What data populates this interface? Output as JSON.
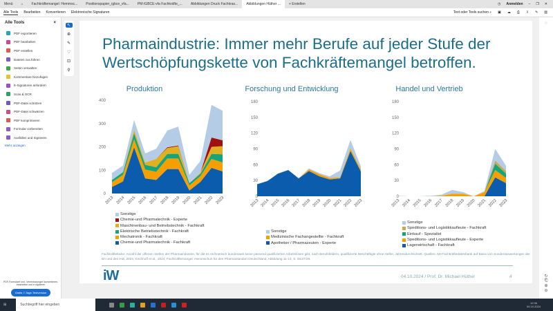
{
  "tabs": {
    "menu": "Menü",
    "items": [
      "Fachkräftemangel: Hemmsc...",
      "Positionspapier_igbce_vfa...",
      "PM-IGBCE-vfa Fachkräfte_...",
      "Abbildungen Druck Fachkras...",
      "Abbildungen Hüther ..."
    ],
    "new": "+ Erstellen",
    "signin": "Anmelden"
  },
  "menubar": {
    "items": [
      "Alle Tools",
      "Bearbeiten",
      "Konvertieren",
      "Elektronische Signaturen"
    ],
    "search": "Text oder Tools suchen"
  },
  "sidebar": {
    "title": "Alle Tools",
    "items": [
      {
        "label": "PDF exportieren",
        "color": "#2aa5b8"
      },
      {
        "label": "PDF bearbeiten",
        "color": "#d04a8a"
      },
      {
        "label": "PDF erstellen",
        "color": "#e05a4a"
      },
      {
        "label": "Dateien zus.führen",
        "color": "#7a5ad0"
      },
      {
        "label": "Seiten verwalten",
        "color": "#3aa84a"
      },
      {
        "label": "Kommentare hinzufügen",
        "color": "#e8c030"
      },
      {
        "label": "E-Signaturen anfordern",
        "color": "#a050c0"
      },
      {
        "label": "Scan & OCR",
        "color": "#30a060"
      },
      {
        "label": "PDF-Datei schützen",
        "color": "#6a5ac8"
      },
      {
        "label": "PDF-Datei schwärzen",
        "color": "#d04a8a"
      },
      {
        "label": "PDF komprimieren",
        "color": "#e05a4a"
      },
      {
        "label": "Formular vorbereiten",
        "color": "#8a5ad0"
      },
      {
        "label": "Ausfüllen und Signieren",
        "color": "#8a5ad0"
      }
    ],
    "more": "Mehr anzeigen",
    "promo": "PDF-Formulare und -Vereinbarungen konvertieren, bearbeiten und e-signieren",
    "trial": "Gratis 7-Tage-Testversion"
  },
  "slide": {
    "title": "Pharmaindustrie: Immer mehr Berufe auf jeder Stufe der Wertschöpfungskette von Fachkräftemangel betroffen.",
    "note": "Fachkräftelücke: Anzahl der offenen Stellen der Pharmaindustrie, für die es rechnerisch bundesweit keine passend qualifizierten Arbeitslosen gibt, nach Berufsfeldern, qualifizierte Beschäftigte ohne Helfer, Jahresdurchschnitt. Quellen: IW-Fachkräftedatenbank auf Basis von Sonderauswertungen der BA und des IAB, 2024; Kirchhoff et al., 2024; Fachkräftemangel: Hemmschuh für den Pharmastandort Deutschland, Abbildung 11-13, S. 25/27/28.",
    "logo": "iW",
    "footer": "04.10.2024 / Prof. Dr. Michael Hüther",
    "page": "4"
  },
  "taskbar": {
    "search": "Suchbegriff hier eingeben",
    "time": "12:36",
    "date": "09.10.2024"
  },
  "chart_data": [
    {
      "type": "area",
      "title": "Produktion",
      "x": [
        "2013",
        "2014",
        "2015",
        "2016",
        "2017",
        "2018",
        "2019",
        "2020",
        "2021",
        "2022",
        "2023"
      ],
      "ylim": [
        0,
        400
      ],
      "yticks": [
        0,
        100,
        200,
        300,
        400
      ],
      "series": [
        {
          "name": "Chemie-und Pharmatechnik - Fachkraft",
          "color": "#0b5cad",
          "values": [
            28,
            52,
            198,
            65,
            58,
            105,
            105,
            13,
            50,
            110,
            95
          ]
        },
        {
          "name": "Mechatronik - Fachkraft",
          "color": "#f5a000",
          "values": [
            20,
            28,
            35,
            38,
            35,
            45,
            45,
            22,
            25,
            38,
            38
          ]
        },
        {
          "name": "Elektrische Betriebstechnik - Fachkraft",
          "color": "#16a57a",
          "values": [
            10,
            12,
            25,
            20,
            20,
            20,
            20,
            10,
            10,
            22,
            35
          ]
        },
        {
          "name": "Maschinenbau- und Betriebstechnik - Fachkraft",
          "color": "#e0b020",
          "values": [
            0,
            0,
            15,
            10,
            35,
            25,
            33,
            0,
            5,
            30,
            35
          ]
        },
        {
          "name": "Chemie-und Pharmatechnik - Experte",
          "color": "#a01010",
          "values": [
            0,
            0,
            0,
            0,
            0,
            3,
            3,
            0,
            0,
            40,
            25
          ]
        },
        {
          "name": "Sonstige",
          "color": "#b4cce6",
          "values": [
            30,
            28,
            42,
            39,
            44,
            72,
            81,
            35,
            50,
            140,
            127
          ]
        }
      ]
    },
    {
      "type": "area",
      "title": "Forschung und Entwicklung",
      "x": [
        "2013",
        "2014",
        "2015",
        "2016",
        "2017",
        "2018",
        "2019",
        "2020",
        "2021",
        "2022",
        "2023"
      ],
      "ylim": [
        0,
        180
      ],
      "yticks": [
        0,
        30,
        60,
        90,
        120,
        150,
        180
      ],
      "series": [
        {
          "name": "Apotheker / Pharmazeuten - Experte",
          "color": "#0b5cad",
          "values": [
            23,
            29,
            43,
            50,
            34,
            48,
            38,
            32,
            34,
            86,
            47
          ]
        },
        {
          "name": "Medizinische Fachangestellte - Fachkraft",
          "color": "#f5a000",
          "values": [
            0,
            0,
            0,
            0,
            0,
            3,
            4,
            3,
            2,
            5,
            4
          ]
        },
        {
          "name": "Sonstige",
          "color": "#b4cce6",
          "values": [
            0,
            0,
            0,
            0,
            0,
            2,
            2,
            3,
            13,
            16,
            6
          ]
        }
      ]
    },
    {
      "type": "area",
      "title": "Handel und Vertrieb",
      "x": [
        "2013",
        "2014",
        "2015",
        "2016",
        "2017",
        "2018",
        "2019",
        "2020",
        "2021",
        "2022",
        "2023"
      ],
      "ylim": [
        0,
        180
      ],
      "yticks": [
        0,
        30,
        60,
        90,
        120,
        150,
        180
      ],
      "series": [
        {
          "name": "Lagerwirtschaft - Fachkraft",
          "color": "#0b5cad",
          "values": [
            0,
            0,
            0,
            0,
            0,
            0,
            0,
            0,
            0,
            36,
            25
          ]
        },
        {
          "name": "Speditions- und Logistikkaufleute - Experte",
          "color": "#f5a000",
          "values": [
            0,
            0,
            0,
            0,
            1,
            5,
            5,
            0,
            8,
            14,
            10
          ]
        },
        {
          "name": "Einkauf - Spezialist",
          "color": "#16a57a",
          "values": [
            0,
            0,
            0,
            0,
            0,
            0,
            0,
            0,
            0,
            12,
            8
          ]
        },
        {
          "name": "Speditions- und Logistikkaufleute - Fachkraft",
          "color": "#c8a850",
          "values": [
            0,
            0,
            0,
            0,
            0,
            0,
            0,
            0,
            0,
            6,
            5
          ]
        },
        {
          "name": "Sonstige",
          "color": "#b4cce6",
          "values": [
            1,
            0,
            0,
            1,
            2,
            7,
            3,
            0,
            2,
            22,
            10
          ]
        }
      ]
    }
  ]
}
